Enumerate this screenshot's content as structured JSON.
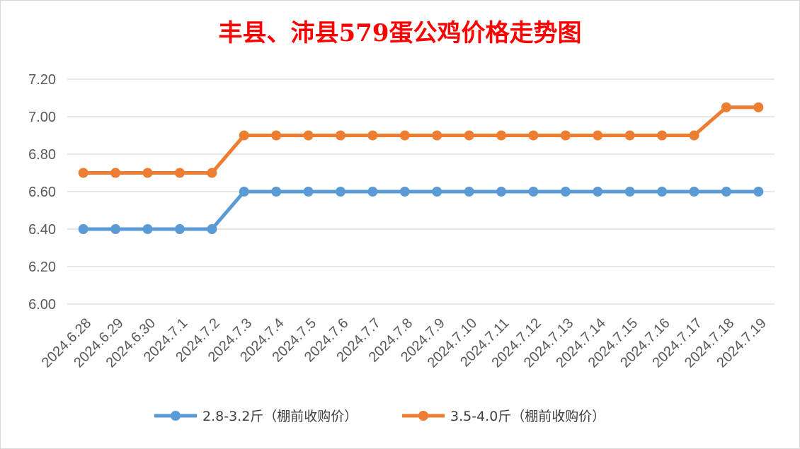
{
  "chart_data": {
    "type": "line",
    "title": "丰县、沛县579蛋公鸡价格走势图",
    "categories": [
      "2024.6.28",
      "2024.6.29",
      "2024.6.30",
      "2024.7.1",
      "2024.7.2",
      "2024.7.3",
      "2024.7.4",
      "2024.7.5",
      "2024.7.6",
      "2024.7.7",
      "2024.7.8",
      "2024.7.9",
      "2024.7.10",
      "2024.7.11",
      "2024.7.12",
      "2024.7.13",
      "2024.7.14",
      "2024.7.15",
      "2024.7.16",
      "2024.7.17",
      "2024.7.18",
      "2024.7.19"
    ],
    "series": [
      {
        "name": "2.8-3.2斤（棚前收购价）",
        "color": "#5b9bd5",
        "values": [
          6.4,
          6.4,
          6.4,
          6.4,
          6.4,
          6.6,
          6.6,
          6.6,
          6.6,
          6.6,
          6.6,
          6.6,
          6.6,
          6.6,
          6.6,
          6.6,
          6.6,
          6.6,
          6.6,
          6.6,
          6.6,
          6.6
        ]
      },
      {
        "name": "3.5-4.0斤（棚前收购价）",
        "color": "#ed7d31",
        "values": [
          6.7,
          6.7,
          6.7,
          6.7,
          6.7,
          6.9,
          6.9,
          6.9,
          6.9,
          6.9,
          6.9,
          6.9,
          6.9,
          6.9,
          6.9,
          6.9,
          6.9,
          6.9,
          6.9,
          6.9,
          7.05,
          7.05
        ]
      }
    ],
    "ylim": [
      6.0,
      7.2
    ],
    "yticks": [
      "6.00",
      "6.20",
      "6.40",
      "6.60",
      "6.80",
      "7.00",
      "7.20"
    ],
    "grid": true,
    "legend_position": "bottom"
  }
}
